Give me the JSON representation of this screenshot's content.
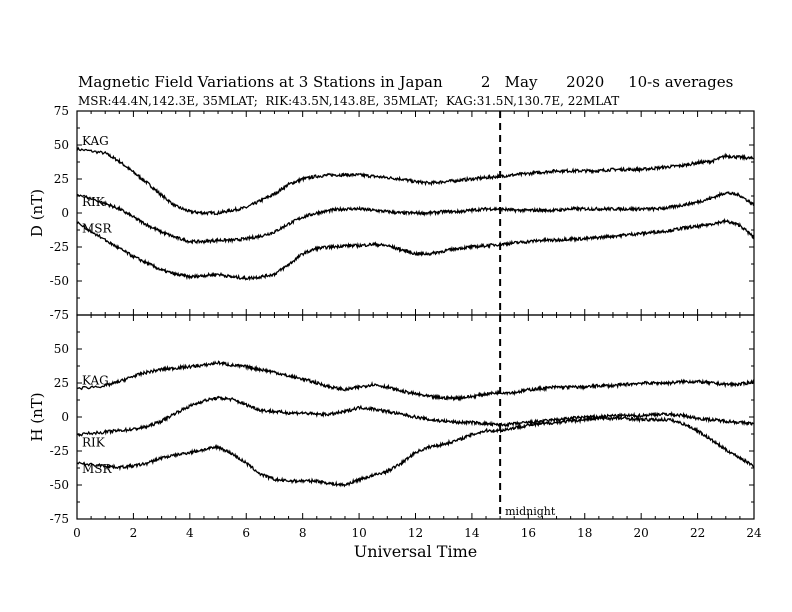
{
  "title": {
    "main": "Magnetic Field Variations at 3 Stations in Japan",
    "day": "2",
    "month": "May",
    "year": "2020",
    "averages": "10-s averages"
  },
  "subtitle": "MSR:44.4N,142.3E, 35MLAT;  RIK:43.5N,143.8E, 35MLAT;  KAG:31.5N,130.7E, 22MLAT",
  "chart_data": [
    {
      "type": "line",
      "ylabel": "D (nT)",
      "ylim": [
        -75,
        75
      ],
      "yticks": [
        -75,
        -50,
        -25,
        0,
        25,
        50,
        75
      ],
      "xlim": [
        0,
        24
      ],
      "series": [
        {
          "name": "KAG",
          "x": [
            0,
            1,
            1.5,
            2,
            2.5,
            3,
            3.5,
            4,
            4.5,
            5,
            5.5,
            6,
            6.5,
            7,
            7.5,
            8,
            8.5,
            9,
            9.5,
            10,
            10.5,
            11,
            11.5,
            12,
            12.5,
            13,
            13.5,
            14,
            14.5,
            15,
            15.5,
            16,
            16.5,
            17,
            17.5,
            18,
            18.5,
            19,
            19.5,
            20,
            20.5,
            21,
            21.5,
            22,
            22.5,
            23,
            23.5,
            24
          ],
          "y": [
            47,
            44,
            38,
            30,
            22,
            13,
            5,
            1,
            0,
            0,
            2,
            4,
            9,
            14,
            21,
            25,
            27,
            28,
            28,
            28,
            27,
            26,
            25,
            23,
            22,
            23,
            24,
            25,
            26,
            27,
            28,
            29,
            30,
            31,
            31,
            31,
            31,
            32,
            32,
            32,
            33,
            34,
            35,
            37,
            38,
            42,
            41,
            40
          ]
        },
        {
          "name": "RIK",
          "x": [
            0,
            1,
            1.5,
            2,
            2.5,
            3,
            3.5,
            4,
            4.5,
            5,
            5.5,
            6,
            6.5,
            7,
            7.5,
            8,
            8.5,
            9,
            9.5,
            10,
            10.5,
            11,
            11.5,
            12,
            12.5,
            13,
            13.5,
            14,
            14.5,
            15,
            15.5,
            16,
            16.5,
            17,
            17.5,
            18,
            18.5,
            19,
            19.5,
            20,
            20.5,
            21,
            21.5,
            22,
            22.5,
            23,
            23.5,
            24
          ],
          "y": [
            14,
            7,
            3,
            -3,
            -9,
            -14,
            -18,
            -21,
            -21,
            -20,
            -20,
            -19,
            -17,
            -14,
            -8,
            -3,
            0,
            2,
            3,
            3,
            2,
            1,
            0,
            0,
            0,
            1,
            1,
            2,
            3,
            3,
            2,
            2,
            2,
            2,
            3,
            3,
            3,
            3,
            3,
            3,
            3,
            4,
            6,
            8,
            11,
            15,
            13,
            6
          ]
        },
        {
          "name": "MSR",
          "x": [
            0,
            1,
            1.5,
            2,
            2.5,
            3,
            3.5,
            4,
            4.5,
            5,
            5.5,
            6,
            6.5,
            7,
            7.5,
            8,
            8.5,
            9,
            9.5,
            10,
            10.5,
            11,
            11.5,
            12,
            12.5,
            13,
            13.5,
            14,
            14.5,
            15,
            15.5,
            16,
            16.5,
            17,
            17.5,
            18,
            18.5,
            19,
            19.5,
            20,
            20.5,
            21,
            21.5,
            22,
            22.5,
            23,
            23.5,
            24
          ],
          "y": [
            -7,
            -20,
            -26,
            -32,
            -37,
            -42,
            -45,
            -47,
            -46,
            -45,
            -47,
            -48,
            -47,
            -45,
            -38,
            -30,
            -26,
            -25,
            -24,
            -24,
            -23,
            -24,
            -27,
            -30,
            -30,
            -28,
            -26,
            -25,
            -24,
            -23,
            -22,
            -21,
            -20,
            -20,
            -19,
            -19,
            -18,
            -17,
            -16,
            -15,
            -14,
            -13,
            -11,
            -10,
            -8,
            -6,
            -9,
            -18
          ]
        }
      ]
    },
    {
      "type": "line",
      "ylabel": "H (nT)",
      "xlabel": "Universal Time",
      "ylim": [
        -75,
        75
      ],
      "yticks": [
        -75,
        -50,
        -25,
        0,
        25,
        50
      ],
      "xlim": [
        0,
        24
      ],
      "xticks": [
        0,
        2,
        4,
        6,
        8,
        10,
        12,
        14,
        16,
        18,
        20,
        22,
        24
      ],
      "series": [
        {
          "name": "KAG",
          "x": [
            0,
            1,
            1.5,
            2,
            2.5,
            3,
            3.5,
            4,
            4.5,
            5,
            5.5,
            6,
            6.5,
            7,
            7.5,
            8,
            8.5,
            9,
            9.5,
            10,
            10.5,
            11,
            11.5,
            12,
            12.5,
            13,
            13.5,
            14,
            14.5,
            15,
            15.5,
            16,
            16.5,
            17,
            17.5,
            18,
            18.5,
            19,
            19.5,
            20,
            20.5,
            21,
            21.5,
            22,
            22.5,
            23,
            23.5,
            24
          ],
          "y": [
            21,
            23,
            26,
            30,
            33,
            35,
            36,
            37,
            38,
            40,
            38,
            37,
            35,
            33,
            30,
            28,
            25,
            22,
            20,
            22,
            24,
            22,
            19,
            17,
            15,
            14,
            14,
            15,
            17,
            18,
            18,
            20,
            21,
            22,
            22,
            22,
            23,
            23,
            24,
            25,
            25,
            25,
            26,
            26,
            25,
            24,
            24,
            26
          ]
        },
        {
          "name": "RIK",
          "x": [
            0,
            1,
            1.5,
            2,
            2.5,
            3,
            3.5,
            4,
            4.5,
            5,
            5.5,
            6,
            6.5,
            7,
            7.5,
            8,
            8.5,
            9,
            9.5,
            10,
            10.5,
            11,
            11.5,
            12,
            12.5,
            13,
            13.5,
            14,
            14.5,
            15,
            15.5,
            16,
            16.5,
            17,
            17.5,
            18,
            18.5,
            19,
            19.5,
            20,
            20.5,
            21,
            21.5,
            22,
            22.5,
            23,
            23.5,
            24
          ],
          "y": [
            -13,
            -11,
            -10,
            -9,
            -7,
            -3,
            3,
            8,
            12,
            14,
            13,
            9,
            5,
            4,
            3,
            3,
            2,
            2,
            4,
            7,
            6,
            4,
            2,
            0,
            -2,
            -3,
            -4,
            -4,
            -5,
            -6,
            -5,
            -4,
            -3,
            -2,
            -1,
            0,
            0,
            1,
            1,
            1,
            2,
            2,
            1,
            -1,
            -2,
            -3,
            -4,
            -5
          ]
        },
        {
          "name": "MSR",
          "x": [
            0,
            1,
            1.5,
            2,
            2.5,
            3,
            3.5,
            4,
            4.5,
            5,
            5.5,
            6,
            6.5,
            7,
            7.5,
            8,
            8.5,
            9,
            9.5,
            10,
            10.5,
            11,
            11.5,
            12,
            12.5,
            13,
            13.5,
            14,
            14.5,
            15,
            15.5,
            16,
            16.5,
            17,
            17.5,
            18,
            18.5,
            19,
            19.5,
            20,
            20.5,
            21,
            21.5,
            22,
            22.5,
            23,
            23.5,
            24
          ],
          "y": [
            -34,
            -36,
            -37,
            -36,
            -34,
            -30,
            -28,
            -26,
            -24,
            -22,
            -27,
            -34,
            -42,
            -46,
            -47,
            -47,
            -47,
            -49,
            -50,
            -46,
            -43,
            -40,
            -34,
            -26,
            -22,
            -20,
            -17,
            -13,
            -10,
            -10,
            -8,
            -6,
            -5,
            -4,
            -3,
            -2,
            -1,
            -1,
            -1,
            -2,
            -2,
            -2,
            -5,
            -10,
            -17,
            -24,
            -30,
            -36
          ]
        }
      ]
    }
  ],
  "midnight": {
    "x": 15,
    "label": "midnight"
  }
}
